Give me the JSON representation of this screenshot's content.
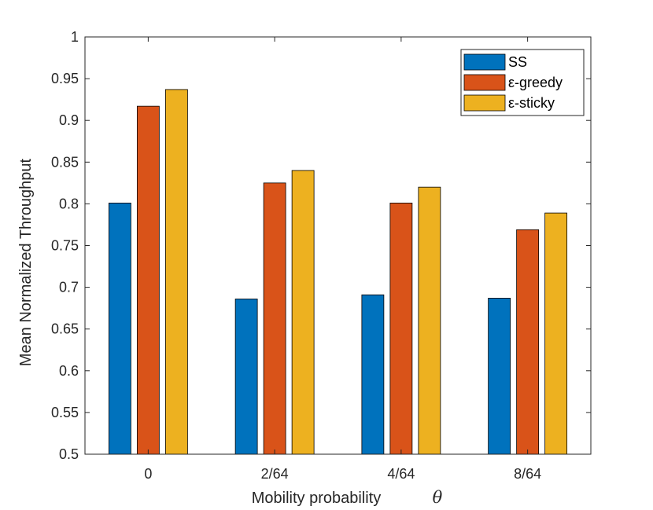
{
  "chart_data": {
    "type": "bar",
    "title": "",
    "xlabel": "Mobility probability",
    "xlabel_symbol": "θ",
    "ylabel": "Mean Normalized Throughput",
    "ylim": [
      0.5,
      1
    ],
    "yticks": [
      0.5,
      0.55,
      0.6,
      0.65,
      0.7,
      0.75,
      0.8,
      0.85,
      0.9,
      0.95,
      1
    ],
    "ytick_labels": [
      "0.5",
      "0.55",
      "0.6",
      "0.65",
      "0.7",
      "0.75",
      "0.8",
      "0.85",
      "0.9",
      "0.95",
      "1"
    ],
    "categories": [
      "0",
      "2/64",
      "4/64",
      "8/64"
    ],
    "grid": false,
    "legend_position": "top-right",
    "series": [
      {
        "name": "SS",
        "color": "#0072bd",
        "values": [
          0.801,
          0.686,
          0.691,
          0.687
        ]
      },
      {
        "name": "ε-greedy",
        "color": "#d95319",
        "values": [
          0.917,
          0.825,
          0.801,
          0.769
        ]
      },
      {
        "name": "ε-sticky",
        "color": "#edb120",
        "values": [
          0.937,
          0.84,
          0.82,
          0.789
        ]
      }
    ]
  }
}
